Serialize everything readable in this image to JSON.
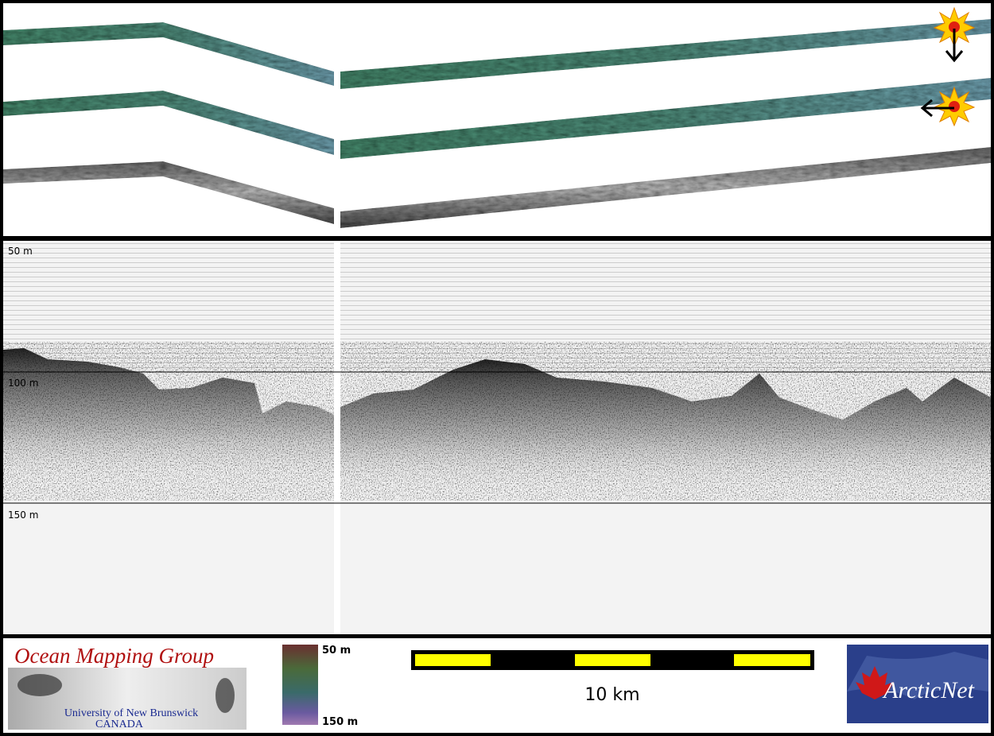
{
  "profile": {
    "depth_labels": [
      "50 m",
      "100 m",
      "150 m"
    ]
  },
  "footer": {
    "logo": {
      "title": "Ocean Mapping Group",
      "institution": "University of New Brunswick",
      "country": "CANADA"
    },
    "color_scale": {
      "top": "50 m",
      "bottom": "150 m"
    },
    "scale_bar": {
      "label": "10 km"
    },
    "partner_logo": "ArcticNet"
  }
}
